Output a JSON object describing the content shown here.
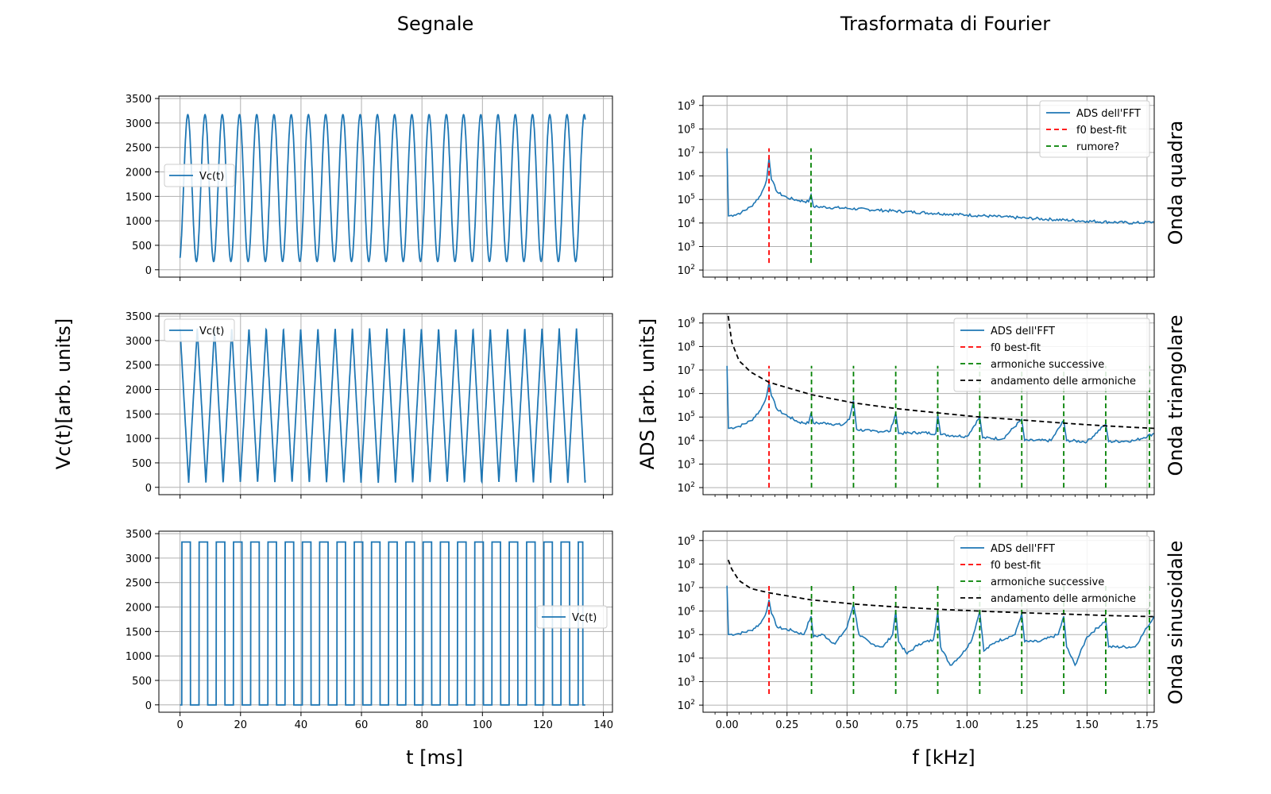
{
  "figure": {
    "col_titles": [
      "Segnale",
      "Trasformata di Fourier"
    ],
    "left_ylabel": "Vc(t)[arb. units]",
    "right_ylabel": "ADS [arb. units]",
    "left_xlabel": "t [ms]",
    "right_xlabel": "f [kHz]",
    "row_labels": [
      "Onda quadra",
      "Onda triangolare",
      "Onda sinusoidale"
    ]
  },
  "colors": {
    "signal": "#1f77b4",
    "fit": "#ff0000",
    "harmonic": "#008000",
    "trend": "#000000",
    "grid": "#b0b0b0"
  },
  "chart_data": [
    {
      "type": "line",
      "panel": "time-1",
      "series": [
        {
          "name": "Vc(t)",
          "waveform": "sine",
          "period_ms": 5.7,
          "min": 170,
          "max": 3170,
          "x_start": 0,
          "x_end": 134
        }
      ],
      "xlim": [
        -7,
        143
      ],
      "ylim": [
        -150,
        3550
      ],
      "yticks": [
        0,
        500,
        1000,
        1500,
        2000,
        2500,
        3000,
        3500
      ],
      "xticks": [
        0,
        20,
        40,
        60,
        80,
        100,
        120,
        140
      ],
      "show_xticklabels": false,
      "legend": "center-left",
      "grid": true
    },
    {
      "type": "line",
      "panel": "time-2",
      "series": [
        {
          "name": "Vc(t)",
          "waveform": "triangle",
          "period_ms": 5.7,
          "min": 90,
          "max": 3250,
          "x_start": 0,
          "x_end": 134
        }
      ],
      "xlim": [
        -7,
        143
      ],
      "ylim": [
        -150,
        3550
      ],
      "yticks": [
        0,
        500,
        1000,
        1500,
        2000,
        2500,
        3000,
        3500
      ],
      "xticks": [
        0,
        20,
        40,
        60,
        80,
        100,
        120,
        140
      ],
      "show_xticklabels": false,
      "legend": "upper-left",
      "grid": true
    },
    {
      "type": "line",
      "panel": "time-3",
      "series": [
        {
          "name": "Vc(t)",
          "waveform": "square",
          "period_ms": 5.7,
          "min": 0,
          "max": 3330,
          "x_start": 0,
          "x_end": 134
        }
      ],
      "xlim": [
        -7,
        143
      ],
      "ylim": [
        -150,
        3550
      ],
      "yticks": [
        0,
        500,
        1000,
        1500,
        2000,
        2500,
        3000,
        3500
      ],
      "xticks": [
        0,
        20,
        40,
        60,
        80,
        100,
        120,
        140
      ],
      "show_xticklabels": true,
      "legend": "center-right",
      "grid": true
    },
    {
      "type": "line",
      "panel": "freq-1",
      "yscale": "log",
      "xlim": [
        -0.1,
        1.78
      ],
      "ylim": [
        50,
        2500000000
      ],
      "xticks": [
        0.0,
        0.25,
        0.5,
        0.75,
        1.0,
        1.25,
        1.5,
        1.75
      ],
      "show_xticklabels": false,
      "legend": "upper-right",
      "grid": true,
      "spectrum": [
        [
          0.0,
          15000000
        ],
        [
          0.006,
          20000
        ],
        [
          0.03,
          22000
        ],
        [
          0.06,
          28000
        ],
        [
          0.1,
          50000
        ],
        [
          0.14,
          150000
        ],
        [
          0.165,
          700000
        ],
        [
          0.175,
          6000000
        ],
        [
          0.185,
          700000
        ],
        [
          0.21,
          200000
        ],
        [
          0.25,
          120000
        ],
        [
          0.3,
          90000
        ],
        [
          0.34,
          80000
        ],
        [
          0.35,
          160000
        ],
        [
          0.36,
          50000
        ],
        [
          0.5,
          42000
        ],
        [
          0.75,
          30000
        ],
        [
          1.0,
          22000
        ],
        [
          1.25,
          16000
        ],
        [
          1.5,
          12000
        ],
        [
          1.7,
          10000
        ],
        [
          1.78,
          11000
        ]
      ],
      "series_names": [
        "ADS dell'FFT",
        "f0 best-fit",
        "rumore?"
      ],
      "fit_line": {
        "x": 0.175,
        "y_range": [
          200,
          15000000
        ]
      },
      "harmonic_lines": {
        "x": [
          0.35
        ],
        "y_range": [
          200,
          15000000
        ]
      }
    },
    {
      "type": "line",
      "panel": "freq-2",
      "yscale": "log",
      "xlim": [
        -0.1,
        1.78
      ],
      "ylim": [
        50,
        2500000000
      ],
      "xticks": [
        0.0,
        0.25,
        0.5,
        0.75,
        1.0,
        1.25,
        1.5,
        1.75
      ],
      "show_xticklabels": false,
      "legend": "upper-right",
      "grid": true,
      "spectrum": [
        [
          0.0,
          15000000
        ],
        [
          0.006,
          33000
        ],
        [
          0.05,
          40000
        ],
        [
          0.1,
          70000
        ],
        [
          0.14,
          200000
        ],
        [
          0.165,
          800000
        ],
        [
          0.175,
          3000000
        ],
        [
          0.185,
          800000
        ],
        [
          0.21,
          200000
        ],
        [
          0.26,
          100000
        ],
        [
          0.3,
          60000
        ],
        [
          0.34,
          55000
        ],
        [
          0.35,
          150000
        ],
        [
          0.36,
          55000
        ],
        [
          0.42,
          55000
        ],
        [
          0.48,
          45000
        ],
        [
          0.51,
          80000
        ],
        [
          0.527,
          500000
        ],
        [
          0.54,
          30000
        ],
        [
          0.6,
          25000
        ],
        [
          0.68,
          25000
        ],
        [
          0.703,
          150000
        ],
        [
          0.715,
          20000
        ],
        [
          0.8,
          22000
        ],
        [
          0.87,
          20000
        ],
        [
          0.878,
          130000
        ],
        [
          0.89,
          18000
        ],
        [
          1.0,
          15000
        ],
        [
          1.053,
          100000
        ],
        [
          1.065,
          13000
        ],
        [
          1.15,
          12000
        ],
        [
          1.228,
          80000
        ],
        [
          1.24,
          10000
        ],
        [
          1.35,
          10000
        ],
        [
          1.403,
          70000
        ],
        [
          1.415,
          10000
        ],
        [
          1.5,
          9000
        ],
        [
          1.578,
          50000
        ],
        [
          1.59,
          9000
        ],
        [
          1.7,
          10000
        ],
        [
          1.78,
          20000
        ]
      ],
      "series_names": [
        "ADS dell'FFT",
        "f0 best-fit",
        "armoniche successive",
        "andamento delle armoniche"
      ],
      "fit_line": {
        "x": 0.175,
        "y_range": [
          100,
          15000000
        ]
      },
      "harmonic_lines": {
        "x": [
          0.352,
          0.527,
          0.703,
          0.878,
          1.053,
          1.228,
          1.403,
          1.578,
          1.76
        ],
        "y_range": [
          100,
          15000000
        ]
      },
      "trend": {
        "x": [
          0.005,
          0.02,
          0.05,
          0.1,
          0.175,
          0.35,
          0.527,
          0.703,
          0.878,
          1.053,
          1.228,
          1.403,
          1.578,
          1.78
        ],
        "y": [
          2000000000,
          150000000,
          25000000,
          8000000,
          3000000,
          900000,
          400000,
          230000,
          150000,
          100000,
          75000,
          55000,
          42000,
          33000
        ]
      }
    },
    {
      "type": "line",
      "panel": "freq-3",
      "yscale": "log",
      "xlim": [
        -0.1,
        1.78
      ],
      "ylim": [
        50,
        2500000000
      ],
      "xticks": [
        0.0,
        0.25,
        0.5,
        0.75,
        1.0,
        1.25,
        1.5,
        1.75
      ],
      "show_xticklabels": true,
      "legend": "upper-right",
      "grid": true,
      "spectrum": [
        [
          0.0,
          12000000
        ],
        [
          0.006,
          100000
        ],
        [
          0.05,
          110000
        ],
        [
          0.1,
          150000
        ],
        [
          0.14,
          300000
        ],
        [
          0.165,
          1000000
        ],
        [
          0.175,
          3000000
        ],
        [
          0.185,
          800000
        ],
        [
          0.21,
          200000
        ],
        [
          0.27,
          150000
        ],
        [
          0.32,
          100000
        ],
        [
          0.35,
          600000
        ],
        [
          0.36,
          80000
        ],
        [
          0.4,
          100000
        ],
        [
          0.45,
          40000
        ],
        [
          0.5,
          200000
        ],
        [
          0.527,
          2000000
        ],
        [
          0.55,
          100000
        ],
        [
          0.6,
          40000
        ],
        [
          0.65,
          30000
        ],
        [
          0.69,
          100000
        ],
        [
          0.703,
          1000000
        ],
        [
          0.715,
          50000
        ],
        [
          0.75,
          15000
        ],
        [
          0.8,
          40000
        ],
        [
          0.86,
          60000
        ],
        [
          0.878,
          1000000
        ],
        [
          0.89,
          30000
        ],
        [
          0.93,
          5000
        ],
        [
          0.98,
          15000
        ],
        [
          1.02,
          60000
        ],
        [
          1.053,
          1000000
        ],
        [
          1.07,
          20000
        ],
        [
          1.12,
          50000
        ],
        [
          1.2,
          100000
        ],
        [
          1.228,
          800000
        ],
        [
          1.24,
          50000
        ],
        [
          1.3,
          50000
        ],
        [
          1.38,
          100000
        ],
        [
          1.403,
          600000
        ],
        [
          1.415,
          30000
        ],
        [
          1.45,
          5000
        ],
        [
          1.5,
          80000
        ],
        [
          1.578,
          400000
        ],
        [
          1.59,
          30000
        ],
        [
          1.7,
          30000
        ],
        [
          1.75,
          200000
        ],
        [
          1.78,
          600000
        ]
      ],
      "series_names": [
        "ADS dell'FFT",
        "f0 best-fit",
        "armoniche successive",
        "andamento delle armoniche"
      ],
      "fit_line": {
        "x": 0.175,
        "y_range": [
          300,
          15000000
        ]
      },
      "harmonic_lines": {
        "x": [
          0.352,
          0.527,
          0.703,
          0.878,
          1.053,
          1.228,
          1.403,
          1.578,
          1.76
        ],
        "y_range": [
          300,
          15000000
        ]
      },
      "trend": {
        "x": [
          0.005,
          0.02,
          0.05,
          0.1,
          0.175,
          0.35,
          0.527,
          0.703,
          0.878,
          1.053,
          1.228,
          1.403,
          1.578,
          1.78
        ],
        "y": [
          150000000,
          60000000,
          20000000,
          9000000,
          6000000,
          3000000,
          2000000,
          1500000,
          1200000,
          1000000,
          850000,
          750000,
          650000,
          580000
        ]
      }
    }
  ]
}
